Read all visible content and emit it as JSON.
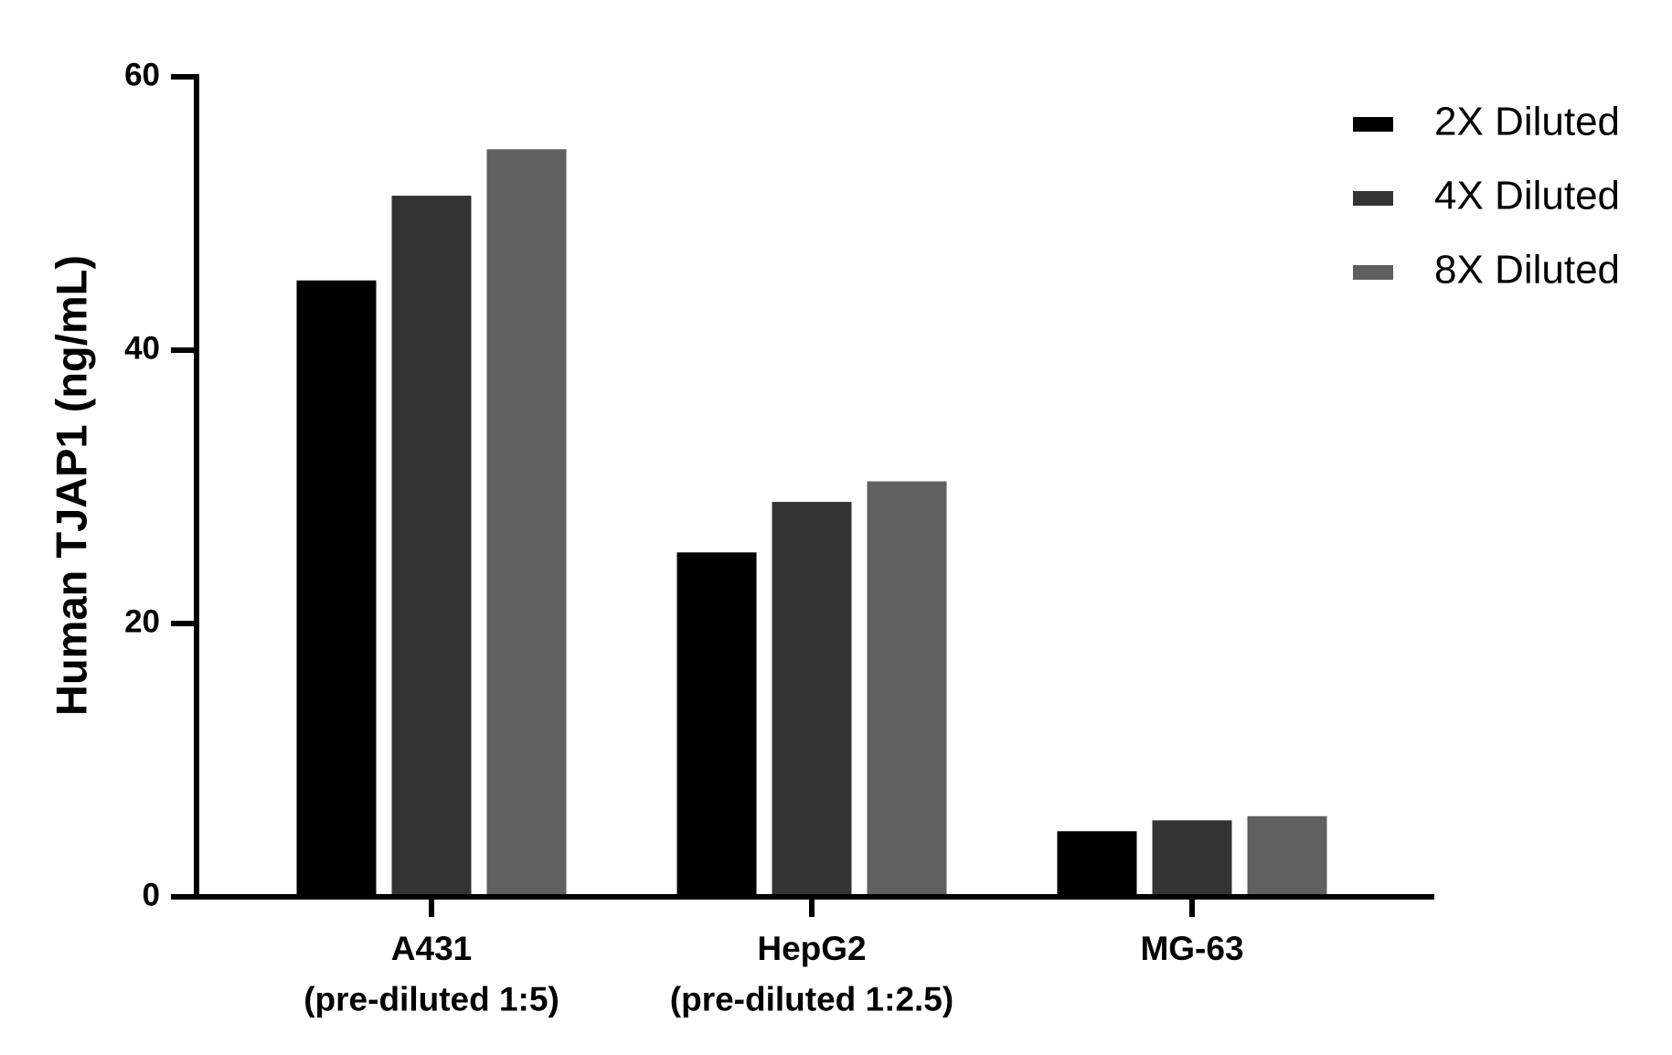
{
  "chart_data": {
    "type": "bar",
    "y_label": "Human TJAP1  (ng/mL)",
    "categories": [
      "A431\n(pre-diluted 1:5)",
      "HepG2\n(pre-diluted 1:2.5)",
      "MG-63"
    ],
    "series": [
      {
        "name": "2X Diluted",
        "color": "#000000",
        "values": [
          45.1,
          25.2,
          4.8
        ]
      },
      {
        "name": "4X Diluted",
        "color": "#333333",
        "values": [
          51.3,
          28.9,
          5.6
        ]
      },
      {
        "name": "8X Diluted",
        "color": "#606060",
        "values": [
          54.7,
          30.4,
          5.9
        ]
      }
    ],
    "ylim": [
      0,
      60
    ],
    "yticks": [
      0,
      20,
      40,
      60
    ],
    "grid": false,
    "legend": "top-right"
  }
}
